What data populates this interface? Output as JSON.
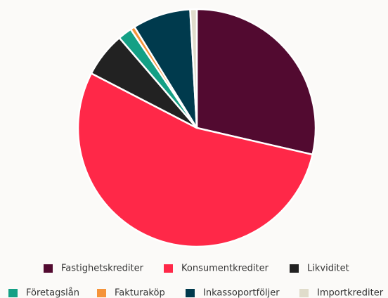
{
  "chart_data": {
    "type": "pie",
    "categories": [
      "Fastighetskrediter",
      "Konsumentkrediter",
      "Likviditet",
      "Företagslån",
      "Fakturaköp",
      "Inkassoportföljer",
      "Importkrediter"
    ],
    "values": [
      28.6,
      54.0,
      6.1,
      1.9,
      0.6,
      7.9,
      0.9
    ],
    "colors": [
      "#520a30",
      "#ff2848",
      "#222222",
      "#14a085",
      "#f5943a",
      "#003a4d",
      "#e0dccb"
    ]
  }
}
